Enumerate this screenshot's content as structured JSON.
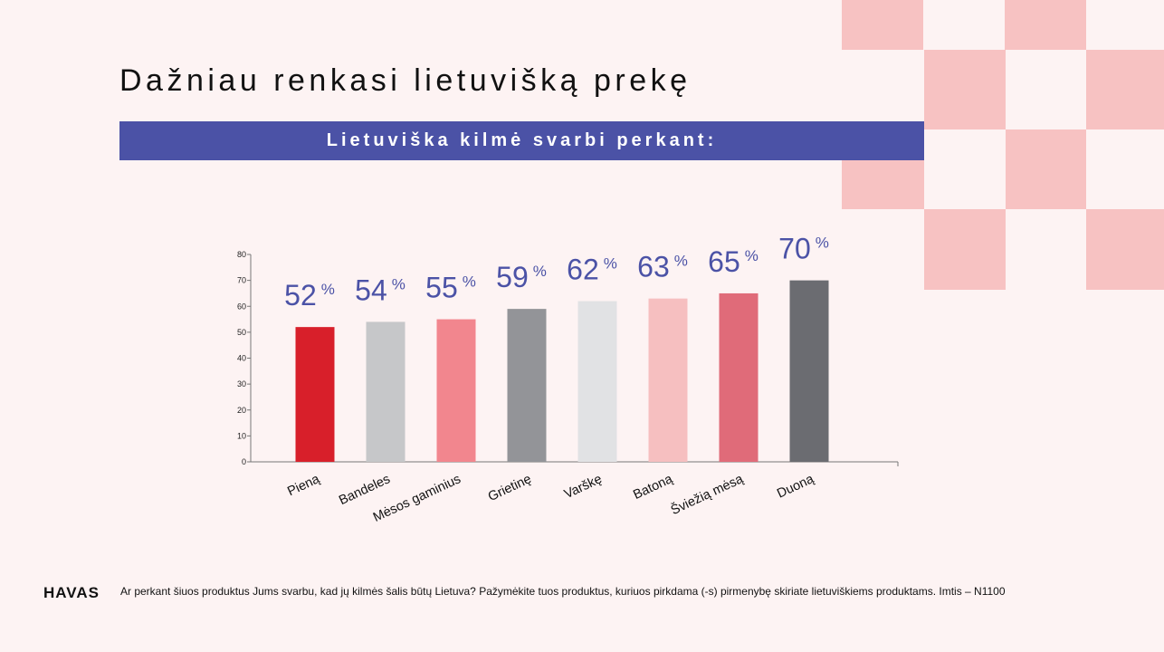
{
  "header": {
    "title": "Dažniau renkasi lietuvišką prekę",
    "banner": "Lietuviška kilmė svarbi perkant:"
  },
  "chart_data": {
    "type": "bar",
    "categories": [
      "Pieną",
      "Bandeles",
      "Mėsos gaminius",
      "Grietinę",
      "Varškę",
      "Batoną",
      "Šviežią mėsą",
      "Duoną"
    ],
    "values": [
      52,
      54,
      55,
      59,
      62,
      63,
      65,
      70
    ],
    "value_labels": [
      "52",
      "54",
      "55",
      "59",
      "62",
      "63",
      "65",
      "70"
    ],
    "value_suffix": "%",
    "bar_colors": [
      "#d81f2a",
      "#c6c7c9",
      "#f2868e",
      "#939498",
      "#e1e2e4",
      "#f6bfc0",
      "#e06b79",
      "#6b6c71"
    ],
    "yticks": [
      0,
      10,
      20,
      30,
      40,
      50,
      60,
      70,
      80
    ],
    "ylim": [
      0,
      80
    ],
    "label_color": "#4b52a6"
  },
  "footer": {
    "brand": "HAVAS",
    "note": "Ar perkant šiuos produktus Jums svarbu, kad jų kilmės šalis būtų Lietuva? Pažymėkite tuos produktus, kuriuos pirkdama (-s) pirmenybę skiriate lietuviškiems produktams. Imtis – N1100"
  },
  "decor": {
    "checker_color": "#f7c2c2"
  }
}
